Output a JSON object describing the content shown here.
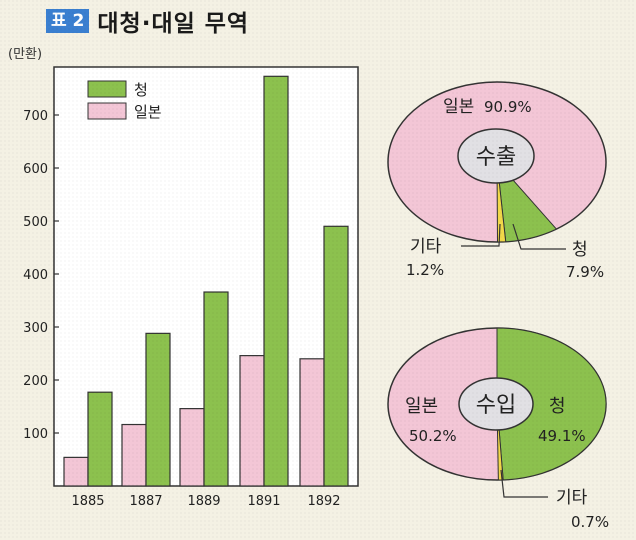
{
  "header": {
    "badge": "표 2",
    "title": "대청·대일 무역"
  },
  "colors": {
    "green": "#8cc14e",
    "pink": "#f3c6d6",
    "yellow": "#f2d849",
    "grey": "#e1e0e4",
    "ink": "#333333"
  },
  "chart_data": [
    {
      "type": "bar",
      "unit_label": "(만환)",
      "categories": [
        "1885",
        "1887",
        "1889",
        "1891",
        "1892"
      ],
      "series": [
        {
          "name": "청",
          "color": "#8cc14e",
          "values": [
            177,
            288,
            366,
            773,
            490
          ]
        },
        {
          "name": "일본",
          "color": "#f3c6d6",
          "values": [
            54,
            116,
            146,
            246,
            240
          ]
        }
      ],
      "yticks": [
        "100",
        "200",
        "300",
        "400",
        "500",
        "600",
        "700"
      ],
      "ylim": [
        0,
        800
      ]
    },
    {
      "type": "pie",
      "title": "수출",
      "slices": [
        {
          "label": "일본",
          "value": 90.9,
          "value_label": "90.9%",
          "color": "#f3c6d6"
        },
        {
          "label": "청",
          "value": 7.9,
          "value_label": "7.9%",
          "color": "#8cc14e"
        },
        {
          "label": "기타",
          "value": 1.2,
          "value_label": "1.2%",
          "color": "#f2d849"
        }
      ]
    },
    {
      "type": "pie",
      "title": "수입",
      "slices": [
        {
          "label": "일본",
          "value": 50.2,
          "value_label": "50.2%",
          "color": "#f3c6d6"
        },
        {
          "label": "청",
          "value": 49.1,
          "value_label": "49.1%",
          "color": "#8cc14e"
        },
        {
          "label": "기타",
          "value": 0.7,
          "value_label": "0.7%",
          "color": "#f2d849"
        }
      ]
    }
  ]
}
